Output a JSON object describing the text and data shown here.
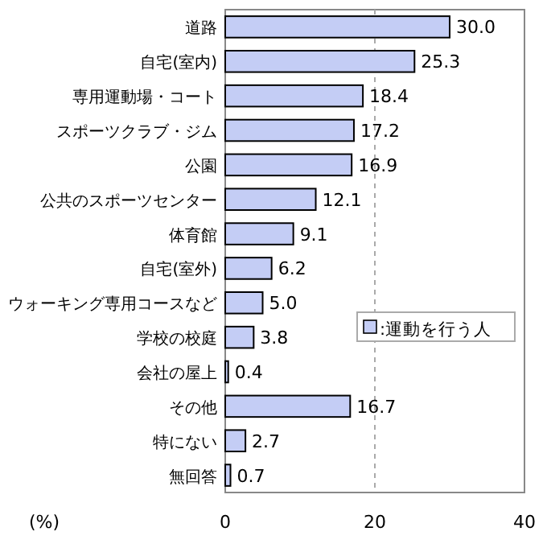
{
  "chart_data": {
    "type": "bar",
    "orientation": "horizontal",
    "xlabel": "(%)",
    "categories": [
      "道路",
      "自宅(室内)",
      "専用運動場・コート",
      "スポーツクラブ・ジム",
      "公園",
      "公共のスポーツセンター",
      "体育館",
      "自宅(室外)",
      "ウォーキング専用コースなど",
      "学校の校庭",
      "会社の屋上",
      "その他",
      "特にない",
      "無回答"
    ],
    "series": [
      {
        "name": ":運動を行う人",
        "color": "#c4cdf5",
        "values": [
          30.0,
          25.3,
          18.4,
          17.2,
          16.9,
          12.1,
          9.1,
          6.2,
          5.0,
          3.8,
          0.4,
          16.7,
          2.7,
          0.7
        ],
        "value_labels": [
          "30.0",
          "25.3",
          "18.4",
          "17.2",
          "16.9",
          "12.1",
          "9.1",
          "6.2",
          "5.0",
          "3.8",
          "0.4",
          "16.7",
          "2.7",
          "0.7"
        ]
      }
    ],
    "xlim": [
      0,
      40
    ],
    "xticks": [
      0,
      20,
      40
    ],
    "grid": "x",
    "legend": "right"
  }
}
